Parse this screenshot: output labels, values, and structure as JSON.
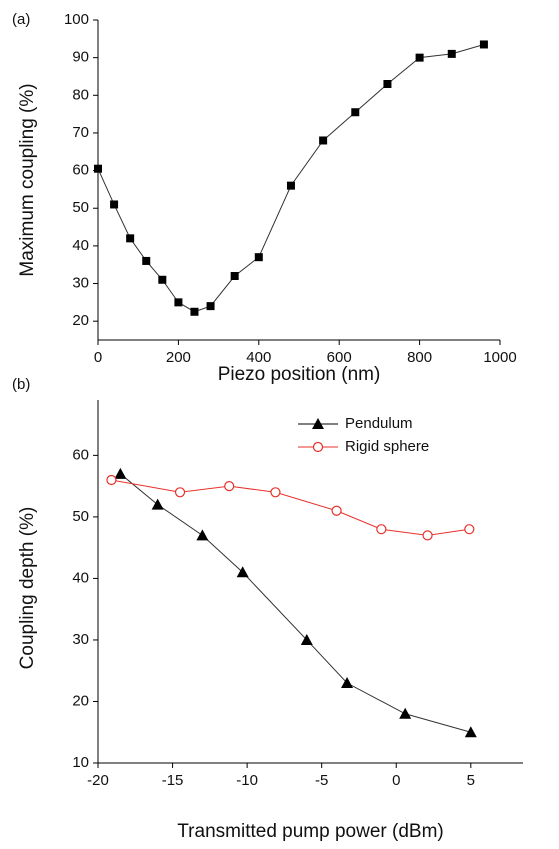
{
  "chart_data": [
    {
      "type": "line",
      "panel_label": "(a)",
      "x_label": "Piezo position (nm)",
      "y_label": "Maximum coupling (%)",
      "x": [
        0,
        40,
        80,
        120,
        160,
        200,
        240,
        280,
        340,
        400,
        480,
        560,
        640,
        720,
        800,
        880,
        960
      ],
      "series": [
        {
          "color": "#000000",
          "marker": "square",
          "values": [
            60.5,
            51,
            42,
            36,
            31,
            25,
            22.5,
            24,
            32,
            37,
            56,
            68,
            75.5,
            83,
            90,
            91,
            93.5
          ]
        }
      ],
      "xlim": [
        0,
        1000
      ],
      "ylim": [
        15,
        100
      ],
      "xticks": [
        0,
        200,
        400,
        600,
        800,
        1000
      ],
      "yticks": [
        20,
        30,
        40,
        50,
        60,
        70,
        80,
        90,
        100
      ]
    },
    {
      "type": "line",
      "panel_label": "(b)",
      "x_label": "Transmitted pump power (dBm)",
      "y_label": "Coupling depth (%)",
      "x": [
        -18.5,
        -16,
        -13,
        -10.3,
        -6,
        -3.3,
        0.6,
        5
      ],
      "series": [
        {
          "name": "Pendulum",
          "color": "#000000",
          "marker": "triangle",
          "values": [
            57,
            52,
            47,
            41,
            30,
            23,
            18,
            15
          ]
        },
        {
          "name": "Rigid sphere",
          "color": "#e8302a",
          "marker": "open-circle",
          "x": [
            -19.1,
            -14.5,
            -11.2,
            -8.1,
            -4,
            -1,
            2.1,
            4.9
          ],
          "values": [
            56,
            54,
            55,
            54,
            51,
            48,
            47,
            48
          ]
        }
      ],
      "xlim": [
        -20,
        8.5
      ],
      "ylim": [
        10,
        69
      ],
      "xticks": [
        -20,
        -15,
        -10,
        -5,
        0,
        5
      ],
      "yticks": [
        10,
        20,
        30,
        40,
        50,
        60
      ],
      "legend": "top-right"
    }
  ]
}
